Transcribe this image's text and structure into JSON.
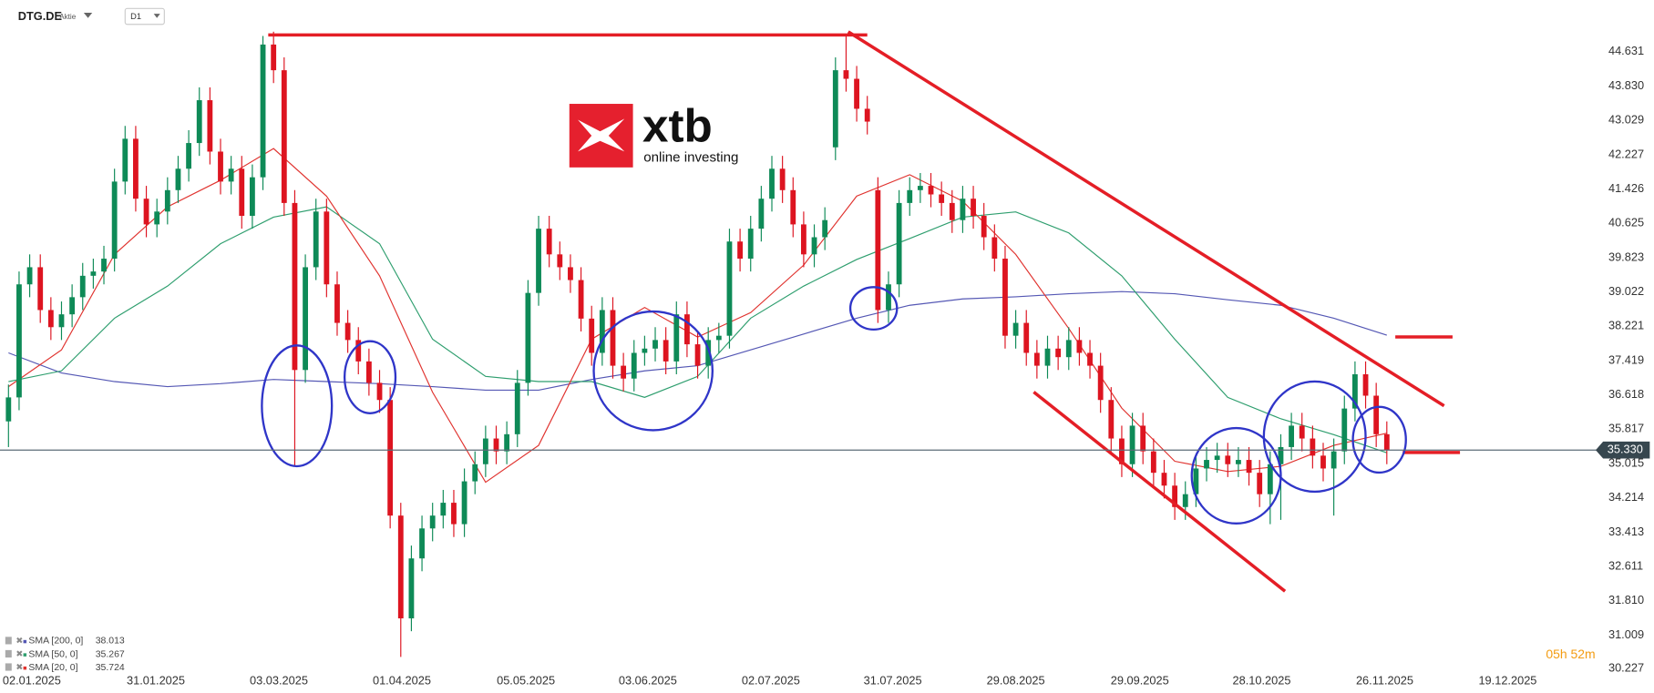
{
  "chart_data": {
    "type": "candlestick",
    "title": "DTG.DE",
    "subtitle": "Aktie",
    "timeframe": "D1",
    "x": [
      0,
      1,
      2,
      3,
      4,
      5,
      6,
      7,
      8,
      9,
      10,
      11,
      12,
      13,
      14,
      15,
      16,
      17,
      18,
      19,
      20,
      21,
      22,
      23,
      24,
      25,
      26,
      27,
      28,
      29,
      30,
      31,
      32,
      33,
      34,
      35,
      36,
      37,
      38,
      39,
      40,
      41,
      42,
      43,
      44,
      45,
      46,
      47,
      48,
      49,
      50,
      51,
      52,
      53,
      54,
      55,
      56,
      57,
      58,
      59,
      60,
      61,
      62,
      63,
      64,
      65,
      66,
      67,
      68,
      69,
      70,
      71,
      72,
      73,
      74,
      75,
      76,
      77,
      78,
      79,
      80,
      81,
      82,
      83,
      84,
      85,
      86,
      87,
      88,
      89,
      90,
      91,
      92,
      93,
      94,
      95,
      96,
      97,
      98,
      99,
      100,
      101,
      102,
      103,
      104,
      105,
      106,
      107,
      108,
      109,
      110,
      111,
      112,
      113,
      114,
      115,
      116,
      117,
      118,
      119,
      120,
      121,
      122,
      123,
      124,
      125,
      126,
      127,
      128,
      129,
      130
    ],
    "open": [
      36.0,
      36.56,
      39.2,
      39.6,
      38.6,
      38.2,
      38.5,
      38.9,
      39.4,
      39.5,
      39.8,
      41.6,
      42.6,
      41.2,
      40.6,
      40.9,
      41.4,
      41.9,
      42.5,
      43.5,
      42.3,
      41.6,
      41.9,
      40.8,
      41.7,
      44.8,
      44.2,
      41.1,
      37.2,
      39.6,
      40.9,
      39.2,
      38.3,
      37.9,
      37.4,
      36.9,
      36.5,
      33.8,
      31.4,
      32.8,
      33.5,
      33.8,
      34.1,
      33.6,
      34.6,
      35.0,
      35.6,
      35.3,
      35.7,
      36.9,
      39.0,
      40.5,
      39.9,
      39.6,
      39.3,
      38.4,
      37.6,
      38.6,
      37.3,
      37.0,
      37.6,
      37.7,
      37.9,
      37.4,
      38.5,
      37.8,
      37.3,
      37.9,
      38.0,
      40.2,
      39.8,
      40.5,
      41.2,
      41.9,
      41.4,
      40.6,
      39.9,
      40.3,
      42.4,
      44.2,
      44.0,
      43.3,
      41.4,
      38.6,
      39.2,
      41.1,
      41.4,
      41.5,
      41.3,
      41.1,
      40.7,
      41.2,
      40.8,
      40.3,
      39.8,
      38.0,
      38.3,
      37.6,
      37.3,
      37.7,
      37.5,
      37.9,
      37.6,
      37.3,
      36.5,
      35.6,
      35.0,
      35.9,
      35.3,
      34.8,
      34.5,
      34.0,
      34.3,
      34.9,
      35.1,
      35.2,
      35.0,
      35.1,
      34.8,
      34.3,
      35.0,
      35.4,
      35.9,
      35.6,
      35.2,
      34.9,
      35.3,
      36.3,
      37.1,
      36.6,
      35.7
    ],
    "high": [
      36.86,
      39.5,
      39.9,
      39.9,
      38.9,
      38.8,
      39.2,
      39.7,
      39.8,
      40.1,
      41.9,
      42.9,
      42.9,
      41.5,
      41.2,
      41.7,
      42.2,
      42.8,
      43.8,
      43.8,
      42.6,
      42.2,
      42.2,
      42.0,
      45.0,
      45.1,
      44.5,
      41.4,
      39.9,
      41.2,
      41.2,
      39.5,
      38.6,
      38.2,
      37.7,
      37.2,
      36.8,
      34.1,
      33.1,
      33.8,
      34.1,
      34.4,
      34.4,
      34.9,
      35.3,
      35.9,
      35.9,
      36.0,
      37.2,
      39.3,
      40.8,
      40.8,
      40.2,
      39.9,
      39.6,
      38.7,
      38.9,
      38.9,
      37.6,
      37.9,
      38.0,
      38.2,
      38.2,
      38.8,
      38.8,
      38.1,
      38.2,
      38.3,
      40.5,
      40.5,
      40.8,
      41.5,
      42.2,
      42.2,
      41.7,
      40.9,
      40.6,
      41.0,
      44.5,
      45.0,
      44.3,
      43.6,
      41.7,
      39.5,
      41.4,
      41.7,
      41.8,
      41.8,
      41.6,
      41.4,
      41.5,
      41.5,
      41.1,
      40.6,
      40.1,
      38.6,
      38.6,
      37.9,
      38.0,
      38.0,
      38.2,
      38.2,
      37.9,
      37.6,
      36.8,
      35.9,
      36.2,
      36.2,
      35.6,
      35.1,
      34.8,
      34.6,
      35.2,
      35.4,
      35.5,
      35.5,
      35.4,
      35.4,
      35.1,
      35.3,
      35.7,
      36.2,
      36.2,
      35.9,
      35.5,
      35.6,
      36.6,
      37.4,
      37.4,
      36.9,
      36.0
    ],
    "low": [
      35.4,
      36.26,
      38.9,
      38.3,
      37.9,
      37.9,
      38.2,
      38.6,
      39.1,
      39.2,
      39.5,
      41.3,
      40.9,
      40.3,
      40.3,
      40.6,
      41.1,
      41.6,
      42.2,
      42.0,
      41.3,
      41.3,
      40.5,
      40.5,
      41.4,
      43.9,
      40.8,
      34.95,
      36.9,
      39.3,
      38.9,
      38.0,
      37.6,
      37.1,
      36.6,
      36.2,
      33.5,
      30.5,
      31.1,
      32.5,
      33.2,
      33.5,
      33.3,
      33.3,
      34.3,
      34.7,
      35.0,
      35.0,
      35.4,
      36.6,
      38.7,
      39.6,
      39.3,
      39.0,
      38.1,
      37.3,
      37.3,
      37.0,
      36.7,
      36.7,
      37.3,
      37.4,
      37.1,
      37.1,
      37.5,
      37.0,
      37.0,
      37.6,
      37.7,
      39.5,
      39.5,
      40.2,
      40.9,
      41.1,
      40.3,
      39.6,
      39.6,
      40.0,
      42.1,
      43.7,
      43.0,
      42.7,
      38.3,
      38.3,
      38.9,
      40.8,
      41.1,
      41.0,
      40.8,
      40.4,
      40.4,
      40.5,
      40.0,
      39.5,
      37.7,
      37.7,
      37.3,
      37.0,
      37.0,
      37.2,
      37.2,
      37.3,
      37.0,
      36.2,
      35.3,
      34.7,
      34.7,
      35.0,
      34.5,
      34.2,
      33.7,
      33.7,
      34.0,
      34.6,
      34.8,
      34.7,
      34.7,
      34.5,
      34.0,
      33.6,
      33.7,
      35.1,
      35.3,
      34.9,
      34.6,
      33.8,
      35.0,
      36.0,
      36.3,
      35.4,
      35.0
    ],
    "close": [
      36.56,
      39.2,
      39.6,
      38.6,
      38.2,
      38.5,
      38.9,
      39.4,
      39.5,
      39.8,
      41.6,
      42.6,
      41.2,
      40.6,
      40.9,
      41.4,
      41.9,
      42.5,
      43.5,
      42.3,
      41.6,
      41.9,
      40.8,
      41.7,
      44.8,
      44.2,
      41.1,
      37.2,
      39.6,
      40.9,
      39.2,
      38.3,
      37.9,
      37.4,
      36.9,
      36.5,
      33.8,
      31.4,
      32.8,
      33.5,
      33.8,
      34.1,
      33.6,
      34.6,
      35.0,
      35.6,
      35.3,
      35.7,
      36.9,
      39.0,
      40.5,
      39.9,
      39.6,
      39.3,
      38.4,
      37.6,
      38.6,
      37.3,
      37.0,
      37.6,
      37.7,
      37.9,
      37.4,
      38.5,
      37.8,
      37.3,
      37.9,
      38.0,
      40.2,
      39.8,
      40.5,
      41.2,
      41.9,
      41.4,
      40.6,
      39.9,
      40.3,
      40.7,
      44.2,
      44.0,
      43.3,
      43.0,
      38.6,
      39.2,
      41.1,
      41.4,
      41.5,
      41.3,
      41.1,
      40.7,
      41.2,
      40.8,
      40.3,
      39.8,
      38.0,
      38.3,
      37.6,
      37.3,
      37.7,
      37.5,
      37.9,
      37.6,
      37.3,
      36.5,
      35.6,
      35.0,
      35.9,
      35.3,
      34.8,
      34.5,
      34.0,
      34.3,
      34.9,
      35.1,
      35.2,
      35.0,
      35.1,
      34.8,
      34.3,
      35.0,
      35.4,
      35.9,
      35.6,
      35.2,
      34.9,
      35.3,
      36.3,
      37.1,
      36.6,
      35.7,
      35.33
    ],
    "up_color": "#0e8a57",
    "down_color": "#dd1420",
    "series": [
      {
        "name": "SMA [200,  0]",
        "color": "#5457b4",
        "x": [
          0,
          5,
          10,
          15,
          20,
          25,
          30,
          35,
          40,
          45,
          50,
          55,
          60,
          65,
          70,
          75,
          80,
          85,
          90,
          95,
          100,
          105,
          110,
          115,
          120,
          125,
          130
        ],
        "values": [
          37.6,
          37.13,
          36.93,
          36.81,
          36.88,
          36.98,
          36.93,
          36.88,
          36.81,
          36.73,
          36.73,
          36.98,
          37.18,
          37.3,
          37.67,
          38.04,
          38.41,
          38.71,
          38.86,
          38.91,
          38.98,
          39.03,
          38.98,
          38.84,
          38.71,
          38.41,
          38.013
        ]
      },
      {
        "name": "SMA [50,  0]",
        "color": "#2e9e6e",
        "x": [
          0,
          5,
          10,
          15,
          20,
          25,
          30,
          35,
          40,
          45,
          50,
          55,
          60,
          65,
          70,
          75,
          80,
          85,
          90,
          95,
          100,
          105,
          110,
          115,
          120,
          125,
          130
        ],
        "values": [
          36.93,
          37.18,
          38.41,
          39.16,
          40.15,
          40.77,
          41.01,
          40.15,
          37.92,
          37.05,
          36.93,
          36.93,
          36.56,
          37.05,
          38.41,
          39.16,
          39.78,
          40.27,
          40.77,
          40.89,
          40.4,
          39.4,
          37.92,
          36.56,
          36.06,
          35.69,
          35.267
        ]
      },
      {
        "name": "SMA [20,  0]",
        "color": "#e0332f",
        "x": [
          0,
          5,
          10,
          15,
          20,
          25,
          30,
          35,
          40,
          45,
          50,
          55,
          60,
          65,
          70,
          75,
          80,
          85,
          90,
          95,
          100,
          105,
          110,
          115,
          120,
          125,
          130
        ],
        "values": [
          36.81,
          37.67,
          39.9,
          41.01,
          41.63,
          42.37,
          41.26,
          39.4,
          36.68,
          34.58,
          35.44,
          37.92,
          38.66,
          37.97,
          38.54,
          39.65,
          41.26,
          41.76,
          41.14,
          39.9,
          38.17,
          36.31,
          35.07,
          34.83,
          34.95,
          35.44,
          35.724
        ]
      }
    ],
    "xlim": [
      -0.8,
      149.2
    ],
    "xticks": [
      {
        "value": 2.2,
        "label": "02.01.2025"
      },
      {
        "value": 13.9,
        "label": "31.01.2025"
      },
      {
        "value": 25.5,
        "label": "03.03.2025"
      },
      {
        "value": 37.1,
        "label": "01.04.2025"
      },
      {
        "value": 48.8,
        "label": "05.05.2025"
      },
      {
        "value": 60.3,
        "label": "03.06.2025"
      },
      {
        "value": 71.9,
        "label": "02.07.2025"
      },
      {
        "value": 83.4,
        "label": "31.07.2025"
      },
      {
        "value": 95,
        "label": "29.08.2025"
      },
      {
        "value": 106.7,
        "label": "29.09.2025"
      },
      {
        "value": 118.2,
        "label": "28.10.2025"
      },
      {
        "value": 129.8,
        "label": "26.11.2025"
      },
      {
        "value": 141.4,
        "label": "19.12.2025"
      }
    ],
    "ylim": [
      29.88,
      45.84
    ],
    "yticks": [
      44.631,
      {
        "value": 43.83,
        "label": "43.830"
      },
      43.029,
      42.227,
      41.426,
      40.625,
      39.823,
      39.022,
      38.221,
      37.419,
      36.618,
      35.817,
      35.015,
      34.214,
      33.413,
      32.611,
      {
        "value": 31.81,
        "label": "31.810"
      },
      31.009,
      30.227
    ],
    "last_price": {
      "value": 35.33,
      "label": "35.330"
    },
    "countdown": "05h 52m",
    "logo": {
      "brand": "xtb",
      "tagline": "online investing"
    }
  }
}
